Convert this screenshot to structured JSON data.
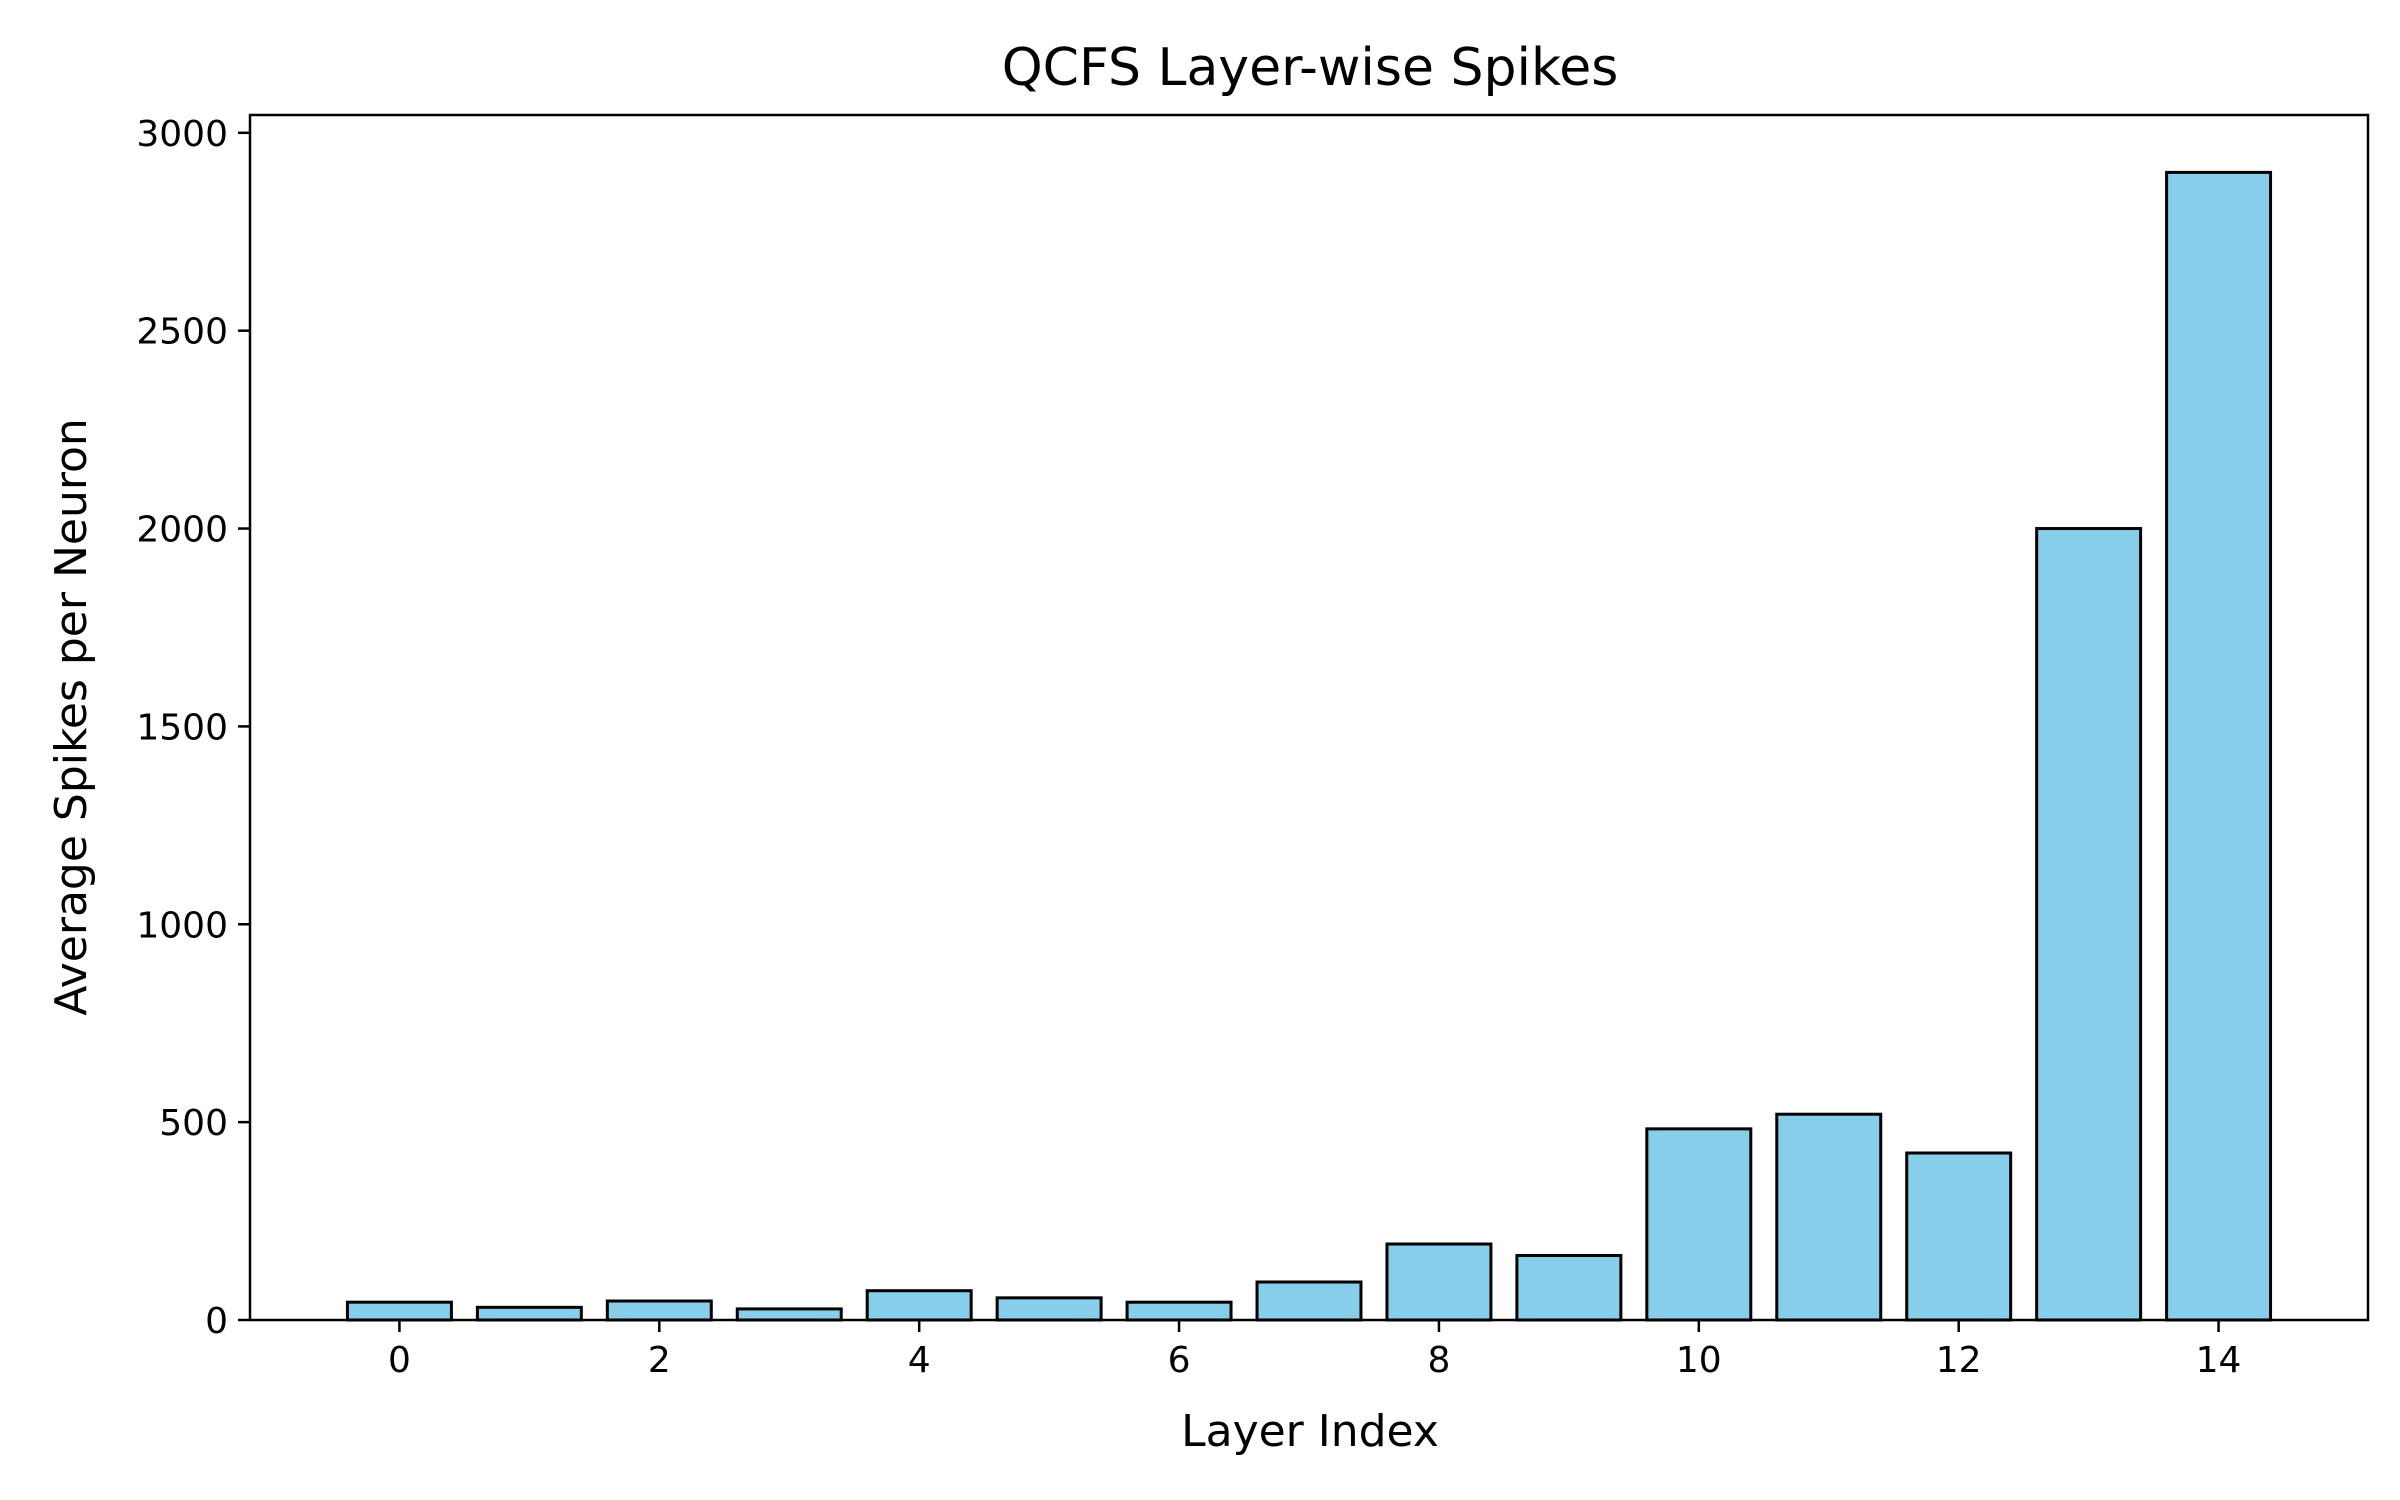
{
  "chart_data": {
    "type": "bar",
    "title": "QCFS Layer-wise Spikes",
    "xlabel": "Layer Index",
    "ylabel": "Average Spikes per Neuron",
    "categories": [
      0,
      1,
      2,
      3,
      4,
      5,
      6,
      7,
      8,
      9,
      10,
      11,
      12,
      13,
      14
    ],
    "values": [
      45,
      32,
      48,
      28,
      74,
      56,
      45,
      96,
      192,
      163,
      483,
      520,
      422,
      2000,
      2900
    ],
    "xlim": [
      -1.15,
      15.15
    ],
    "ylim": [
      0,
      3045
    ],
    "xticks": [
      0,
      2,
      4,
      6,
      8,
      10,
      12,
      14
    ],
    "yticks": [
      0,
      500,
      1000,
      1500,
      2000,
      2500,
      3000
    ],
    "grid": false,
    "colors": {
      "bar_fill": "#87ceeb",
      "bar_edge": "#000000"
    }
  }
}
